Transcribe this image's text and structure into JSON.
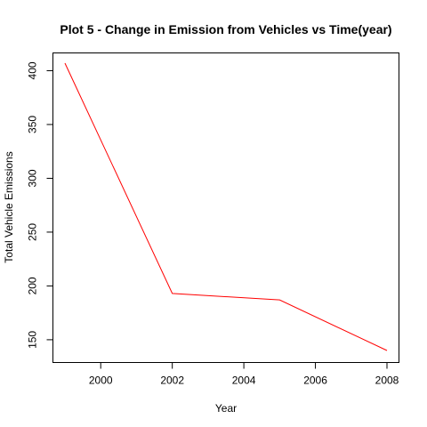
{
  "chart_data": {
    "type": "line",
    "title": "Plot 5 - Change in Emission from Vehicles vs Time(year)",
    "xlabel": "Year",
    "ylabel": "Total Vehicle Emissions",
    "x": [
      1999,
      2002,
      2005,
      2008
    ],
    "series": [
      {
        "values": [
          407,
          193,
          187,
          140
        ],
        "color": "#ff0000"
      }
    ],
    "xlim": [
      1999,
      2008
    ],
    "ylim": [
      140,
      407
    ],
    "xticks": [
      2000,
      2002,
      2004,
      2006,
      2008
    ],
    "yticks": [
      150,
      200,
      250,
      300,
      350,
      400
    ],
    "grid": false,
    "legend": "none"
  }
}
